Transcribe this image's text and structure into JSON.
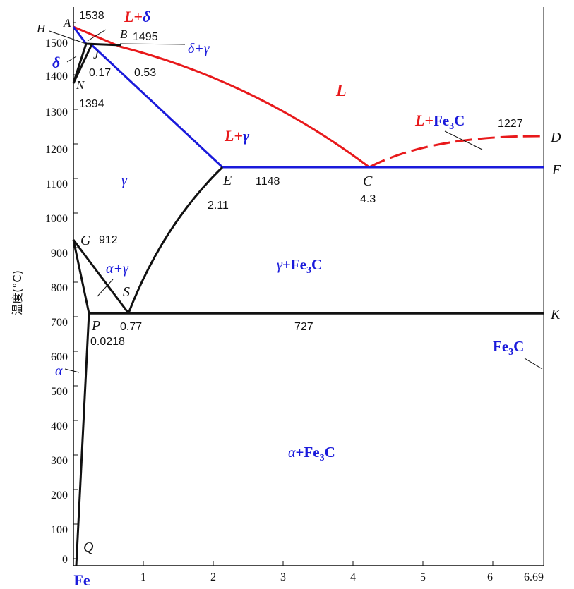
{
  "diagram": {
    "y_axis_label": "温度(°C)",
    "y_ticks": [
      "0",
      "100",
      "200",
      "300",
      "400",
      "500",
      "600",
      "700",
      "800",
      "900",
      "1000",
      "1100",
      "1200",
      "1300",
      "1400",
      "1500"
    ],
    "x_ticks": [
      "1",
      "2",
      "3",
      "4",
      "5",
      "6",
      "6.69"
    ],
    "x_origin_label": "Fe",
    "points": {
      "A": "A",
      "H": "H",
      "B": "B",
      "J": "J",
      "N": "N",
      "E": "E",
      "C": "C",
      "D": "D",
      "F": "F",
      "G": "G",
      "S": "S",
      "P": "P",
      "K": "K",
      "Q": "Q"
    },
    "values": {
      "t1538": "1538",
      "t1495": "1495",
      "t1394": "1394",
      "t1148": "1148",
      "t1227": "1227",
      "t912": "912",
      "t727": "727",
      "c017": "0.17",
      "c053": "0.53",
      "c211": "2.11",
      "c43": "4.3",
      "c077": "0.77",
      "c00218": "0.0218"
    },
    "phases": {
      "L_delta": {
        "L": "L",
        "plus": "+",
        "delta": "δ"
      },
      "delta": "δ",
      "delta_gamma": "δ+γ",
      "L": "L",
      "L_gamma": {
        "L": "L",
        "plus": "+",
        "gamma": "γ"
      },
      "L_Fe3C": {
        "L": "L",
        "plus": "+",
        "fe": "Fe",
        "sub": "3",
        "c": "C"
      },
      "gamma": "γ",
      "alpha_gamma": "α+γ",
      "gamma_Fe3C": {
        "gamma": "γ",
        "plus": "+Fe",
        "sub": "3",
        "c": "C"
      },
      "Fe3C": {
        "fe": "Fe",
        "sub": "3",
        "c": "C"
      },
      "alpha": "α",
      "alpha_Fe3C": {
        "alpha": "α",
        "plus": "+Fe",
        "sub": "3",
        "c": "C"
      }
    },
    "colors": {
      "liquidus_red": "#e8191b",
      "solid_blue": "#1a1adb",
      "black": "#111111"
    }
  }
}
